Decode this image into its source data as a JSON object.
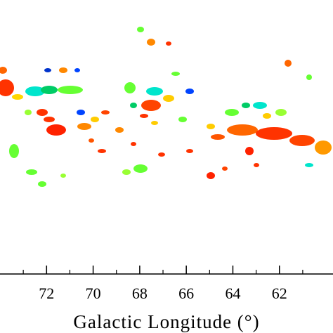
{
  "chart_data": {
    "type": "map",
    "xlabel": "Galactic Longitude (°)",
    "xlim": [
      74.0,
      59.7
    ],
    "xticks": [
      72,
      70,
      68,
      66,
      64,
      62
    ],
    "minor_xticks": [
      73,
      71,
      69,
      67,
      65,
      63,
      61
    ]
  }
}
